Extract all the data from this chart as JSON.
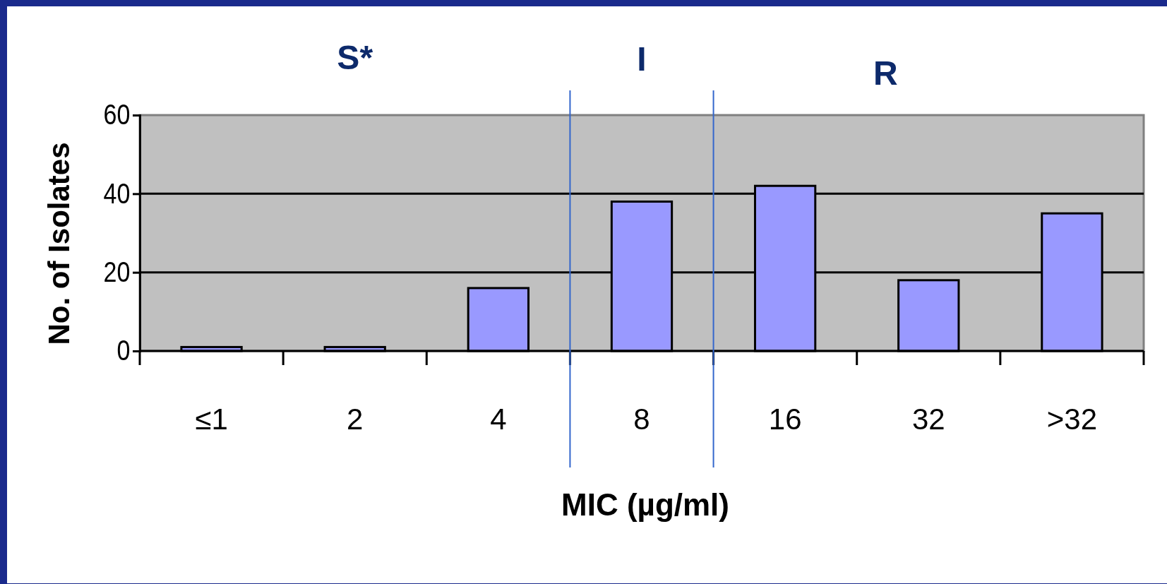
{
  "chart_data": {
    "type": "bar",
    "xlabel": "MIC (µg/ml)",
    "ylabel": "No. of Isolates",
    "categories": [
      "≤1",
      "2",
      "4",
      "8",
      "16",
      "32",
      ">32"
    ],
    "values": [
      1,
      1,
      16,
      38,
      42,
      18,
      35
    ],
    "color": "#9999ff",
    "ylim": [
      0,
      60
    ],
    "yticks": [
      0,
      20,
      40,
      60
    ],
    "grid": "y",
    "annotations": [
      "S*",
      "I",
      "R"
    ]
  }
}
